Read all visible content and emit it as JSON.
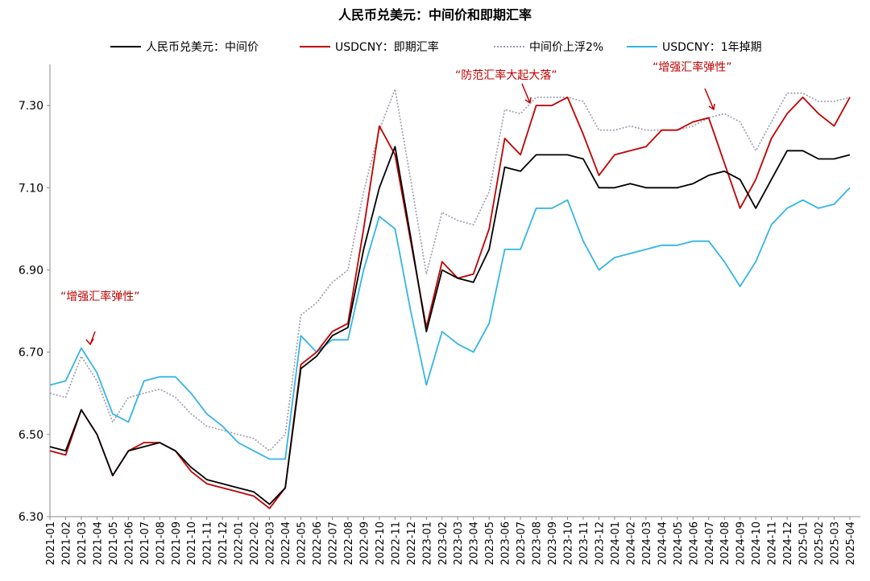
{
  "chart_data": {
    "type": "line",
    "title": "人民币兑美元：中间价和即期汇率",
    "categories": [
      "2021-01",
      "2021-02",
      "2021-03",
      "2021-04",
      "2021-05",
      "2021-06",
      "2021-07",
      "2021-08",
      "2021-09",
      "2021-10",
      "2021-11",
      "2021-12",
      "2022-01",
      "2022-02",
      "2022-03",
      "2022-04",
      "2022-05",
      "2022-06",
      "2022-07",
      "2022-08",
      "2022-09",
      "2022-10",
      "2022-11",
      "2022-12",
      "2023-01",
      "2023-02",
      "2023-03",
      "2023-04",
      "2023-05",
      "2023-06",
      "2023-07",
      "2023-08",
      "2023-09",
      "2023-10",
      "2023-11",
      "2023-12",
      "2024-01",
      "2024-02",
      "2024-03",
      "2024-04",
      "2024-05",
      "2024-06",
      "2024-07",
      "2024-08",
      "2024-09",
      "2024-10",
      "2024-11",
      "2024-12",
      "2025-01",
      "2025-02",
      "2025-03",
      "2025-04"
    ],
    "series": [
      {
        "name": "人民币兑美元：中间价",
        "color": "#000000",
        "dash": false,
        "values": [
          6.47,
          6.46,
          6.56,
          6.5,
          6.4,
          6.46,
          6.47,
          6.48,
          6.46,
          6.42,
          6.39,
          6.38,
          6.37,
          6.36,
          6.33,
          6.37,
          6.66,
          6.69,
          6.74,
          6.76,
          6.95,
          7.1,
          7.2,
          6.98,
          6.75,
          6.9,
          6.88,
          6.87,
          6.95,
          7.15,
          7.14,
          7.18,
          7.18,
          7.18,
          7.17,
          7.1,
          7.1,
          7.11,
          7.1,
          7.1,
          7.1,
          7.11,
          7.13,
          7.14,
          7.12,
          7.05,
          7.12,
          7.19,
          7.19,
          7.17,
          7.17,
          7.18
        ]
      },
      {
        "name": "USDCNY：即期汇率",
        "color": "#c00000",
        "dash": false,
        "values": [
          6.46,
          6.45,
          6.56,
          6.5,
          6.4,
          6.46,
          6.48,
          6.48,
          6.46,
          6.41,
          6.38,
          6.37,
          6.36,
          6.35,
          6.32,
          6.37,
          6.67,
          6.7,
          6.75,
          6.77,
          7.0,
          7.25,
          7.18,
          6.97,
          6.76,
          6.92,
          6.88,
          6.89,
          7.0,
          7.22,
          7.18,
          7.3,
          7.3,
          7.32,
          7.23,
          7.13,
          7.18,
          7.19,
          7.2,
          7.24,
          7.24,
          7.26,
          7.27,
          7.16,
          7.05,
          7.12,
          7.22,
          7.28,
          7.32,
          7.28,
          7.25,
          7.32
        ]
      },
      {
        "name": "中间价上浮2%",
        "color": "#9a9aae",
        "dash": true,
        "values": [
          6.6,
          6.59,
          6.69,
          6.63,
          6.53,
          6.59,
          6.6,
          6.61,
          6.59,
          6.55,
          6.52,
          6.51,
          6.5,
          6.49,
          6.46,
          6.5,
          6.79,
          6.82,
          6.87,
          6.9,
          7.09,
          7.24,
          7.34,
          7.12,
          6.89,
          7.04,
          7.02,
          7.01,
          7.09,
          7.29,
          7.28,
          7.32,
          7.32,
          7.32,
          7.31,
          7.24,
          7.24,
          7.25,
          7.24,
          7.24,
          7.24,
          7.25,
          7.27,
          7.28,
          7.26,
          7.19,
          7.26,
          7.33,
          7.33,
          7.31,
          7.31,
          7.32
        ]
      },
      {
        "name": "USDCNY：1年掉期",
        "color": "#33b5e5",
        "dash": false,
        "values": [
          6.62,
          6.63,
          6.71,
          6.65,
          6.55,
          6.53,
          6.63,
          6.64,
          6.64,
          6.6,
          6.55,
          6.52,
          6.48,
          6.46,
          6.44,
          6.44,
          6.74,
          6.7,
          6.73,
          6.73,
          6.9,
          7.03,
          7.0,
          6.8,
          6.62,
          6.75,
          6.72,
          6.7,
          6.77,
          6.95,
          6.95,
          7.05,
          7.05,
          7.07,
          6.97,
          6.9,
          6.93,
          6.94,
          6.95,
          6.96,
          6.96,
          6.97,
          6.97,
          6.92,
          6.86,
          6.92,
          7.01,
          7.05,
          7.07,
          7.05,
          7.06,
          7.1
        ]
      }
    ],
    "ylim": [
      6.3,
      7.4
    ],
    "yticks": [
      {
        "value": 6.3,
        "label": "6.30"
      },
      {
        "value": 6.5,
        "label": "6.50"
      },
      {
        "value": 6.7,
        "label": "6.70"
      },
      {
        "value": 6.9,
        "label": "6.90"
      },
      {
        "value": 7.1,
        "label": "7.10"
      },
      {
        "value": 7.3,
        "label": "7.30"
      }
    ],
    "legend": "top",
    "annotations": [
      "“增强汇率弹性”",
      "“防范汇率大起大落”",
      "“增强汇率弹性”"
    ]
  }
}
